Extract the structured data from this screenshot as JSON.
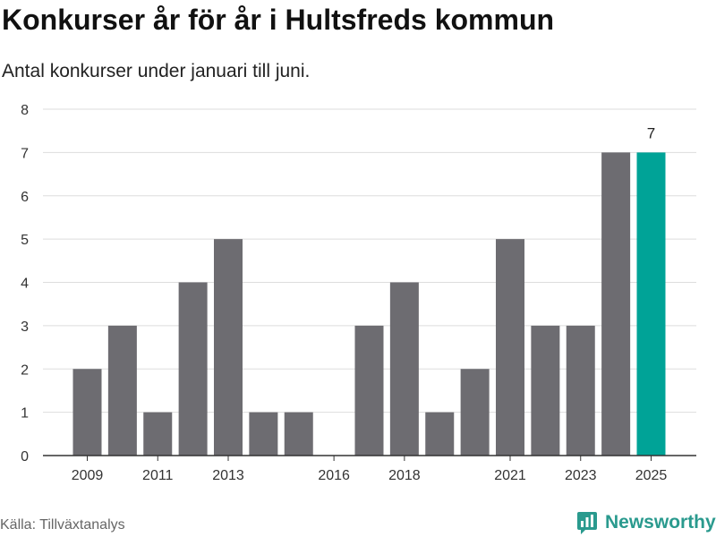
{
  "header": {
    "title": "Konkurser år för år i Hultsfreds kommun",
    "subtitle": "Antal konkurser under januari till juni."
  },
  "footer": {
    "source": "Källa: Tillväxtanalys",
    "brand": "Newsworthy",
    "brand_icon": "newsworthy-chart-icon"
  },
  "colors": {
    "bar_default": "#6d6c71",
    "bar_highlight": "#00a397",
    "grid": "#dddddd",
    "axis": "#333333",
    "brand": "#2a9a8e"
  },
  "chart_data": {
    "type": "bar",
    "categories": [
      "2009",
      "2010",
      "2011",
      "2012",
      "2013",
      "2014",
      "2015",
      "2016",
      "2017",
      "2018",
      "2019",
      "2020",
      "2021",
      "2022",
      "2023",
      "2024",
      "2025"
    ],
    "values": [
      2,
      3,
      1,
      4,
      5,
      1,
      1,
      0,
      3,
      4,
      1,
      2,
      5,
      3,
      3,
      7,
      7
    ],
    "shown_tick_labels": [
      "2009",
      "2011",
      "2013",
      "2016",
      "2018",
      "2021",
      "2023",
      "2025"
    ],
    "highlight": "2025",
    "data_labels": [
      {
        "category": "2025",
        "text": "7"
      }
    ],
    "ylim": [
      0,
      8
    ],
    "yticks": [
      0,
      1,
      2,
      3,
      4,
      5,
      6,
      7,
      8
    ],
    "grid": true,
    "title": "Konkurser år för år i Hultsfreds kommun",
    "subtitle": "Antal konkurser under januari till juni.",
    "xlabel": "",
    "ylabel": ""
  }
}
